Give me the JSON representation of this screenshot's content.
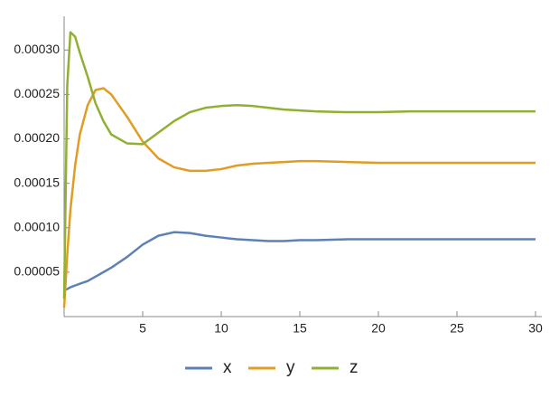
{
  "chart_data": {
    "type": "line",
    "x": [
      0,
      0.2,
      0.4,
      0.7,
      1,
      1.5,
      2,
      2.5,
      3,
      4,
      5,
      6,
      7,
      8,
      9,
      10,
      11,
      12,
      13,
      14,
      15,
      16,
      18,
      20,
      22,
      25,
      28,
      30
    ],
    "series": [
      {
        "name": "x",
        "color": "#5e81b5",
        "values": [
          3e-05,
          3.1e-05,
          3.3e-05,
          3.5e-05,
          3.7e-05,
          4e-05,
          4.5e-05,
          5e-05,
          5.5e-05,
          6.7e-05,
          8.1e-05,
          9.1e-05,
          9.5e-05,
          9.4e-05,
          9.1e-05,
          8.9e-05,
          8.7e-05,
          8.6e-05,
          8.5e-05,
          8.5e-05,
          8.6e-05,
          8.6e-05,
          8.7e-05,
          8.7e-05,
          8.7e-05,
          8.7e-05,
          8.7e-05,
          8.7e-05
        ]
      },
      {
        "name": "y",
        "color": "#e19c24",
        "values": [
          1e-05,
          7e-05,
          0.00012,
          0.00017,
          0.000205,
          0.000238,
          0.000255,
          0.000257,
          0.00025,
          0.000225,
          0.000197,
          0.000178,
          0.000168,
          0.000164,
          0.000164,
          0.000166,
          0.00017,
          0.000172,
          0.000173,
          0.000174,
          0.000175,
          0.000175,
          0.000174,
          0.000173,
          0.000173,
          0.000173,
          0.000173,
          0.000173
        ]
      },
      {
        "name": "z",
        "color": "#8fb032",
        "values": [
          2e-05,
          0.00026,
          0.00032,
          0.000315,
          0.000297,
          0.00027,
          0.00024,
          0.00022,
          0.000205,
          0.000195,
          0.000194,
          0.000207,
          0.00022,
          0.00023,
          0.000235,
          0.000237,
          0.000238,
          0.000237,
          0.000235,
          0.000233,
          0.000232,
          0.000231,
          0.00023,
          0.00023,
          0.000231,
          0.000231,
          0.000231,
          0.000231
        ]
      }
    ],
    "xlim": [
      0,
      30
    ],
    "ylim": [
      0,
      0.00034
    ],
    "xticks": [
      5,
      10,
      15,
      20,
      25,
      30
    ],
    "yticks": [
      {
        "value": 5e-05,
        "label": "0.00005"
      },
      {
        "value": 0.0001,
        "label": "0.00010"
      },
      {
        "value": 0.00015,
        "label": "0.00015"
      },
      {
        "value": 0.0002,
        "label": "0.00020"
      },
      {
        "value": 0.00025,
        "label": "0.00025"
      },
      {
        "value": 0.0003,
        "label": "0.00030"
      }
    ],
    "legend": "bottom"
  }
}
